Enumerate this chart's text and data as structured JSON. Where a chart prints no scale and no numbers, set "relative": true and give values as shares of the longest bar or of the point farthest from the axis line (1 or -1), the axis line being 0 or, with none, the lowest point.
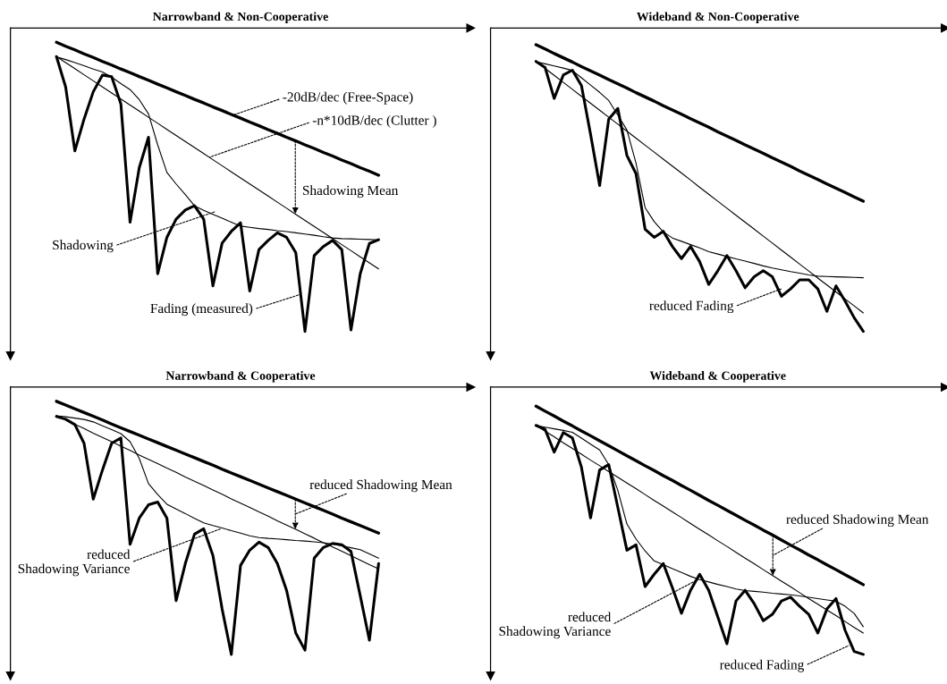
{
  "chart_data": [
    {
      "type": "line",
      "title": "Narrowband & Non-Cooperative",
      "relative": true,
      "tick_labels": false,
      "line_style": "solid",
      "categories": [
        null,
        null,
        null,
        null,
        null,
        null,
        null,
        null,
        null,
        null,
        null,
        null,
        null,
        null,
        null,
        null,
        null,
        null,
        null,
        null,
        null,
        null,
        null,
        null,
        null,
        null,
        null,
        null,
        null,
        null,
        null,
        null,
        null,
        null,
        null,
        null
      ],
      "series": [
        {
          "color": "#000000",
          "values": [
            -0.047,
            -0.06,
            -0.072,
            -0.085,
            -0.097,
            -0.11,
            -0.122,
            -0.135,
            -0.147,
            -0.16,
            -0.172,
            -0.185,
            -0.197,
            -0.21,
            -0.222,
            -0.235,
            -0.247,
            -0.26,
            -0.272,
            -0.285,
            -0.297,
            -0.31,
            -0.322,
            -0.335,
            -0.347,
            -0.36,
            -0.372,
            -0.385,
            -0.397,
            -0.41,
            -0.422,
            -0.435,
            -0.447,
            -0.46,
            -0.472,
            -0.485
          ]
        },
        {
          "color": "#000000",
          "values": [
            -0.094,
            -0.114,
            -0.134,
            -0.154,
            -0.174,
            -0.194,
            -0.214,
            -0.234,
            -0.254,
            -0.274,
            -0.294,
            -0.314,
            -0.334,
            -0.354,
            -0.374,
            -0.394,
            -0.414,
            -0.434,
            -0.454,
            -0.474,
            -0.494,
            -0.514,
            -0.534,
            -0.554,
            -0.574,
            -0.594,
            -0.614,
            -0.634,
            -0.654,
            -0.674,
            -0.694,
            -0.714,
            -0.734,
            -0.754,
            -0.774,
            -0.794
          ]
        },
        {
          "color": "#000000",
          "values": [
            -0.095,
            -0.104,
            -0.114,
            -0.124,
            -0.135,
            -0.145,
            -0.162,
            -0.183,
            -0.203,
            -0.236,
            -0.283,
            -0.385,
            -0.476,
            -0.514,
            -0.549,
            -0.586,
            -0.601,
            -0.614,
            -0.627,
            -0.64,
            -0.653,
            -0.657,
            -0.661,
            -0.664,
            -0.668,
            -0.671,
            -0.675,
            -0.679,
            -0.683,
            -0.688,
            -0.692,
            -0.694,
            -0.695,
            -0.696,
            -0.697,
            -0.698
          ]
        },
        {
          "color": "#000000",
          "values": [
            -0.094,
            -0.194,
            -0.405,
            -0.3,
            -0.21,
            -0.155,
            -0.16,
            -0.25,
            -0.64,
            -0.46,
            -0.36,
            -0.81,
            -0.69,
            -0.63,
            -0.6,
            -0.586,
            -0.63,
            -0.85,
            -0.709,
            -0.67,
            -0.642,
            -0.867,
            -0.73,
            -0.7,
            -0.675,
            -0.69,
            -0.74,
            -1,
            -0.75,
            -0.72,
            -0.7,
            -0.73,
            -0.995,
            -0.81,
            -0.71,
            -0.698
          ]
        }
      ],
      "annotations": [
        "-20dB/dec (Free-Space)",
        "-n*10dB/dec (Clutter )",
        "Shadowing Mean",
        "Shadowing",
        "Fading (measured)"
      ]
    },
    {
      "type": "line",
      "title": "Wideband & Non-Cooperative",
      "relative": true,
      "tick_labels": false,
      "line_style": "solid",
      "categories": [
        null,
        null,
        null,
        null,
        null,
        null,
        null,
        null,
        null,
        null,
        null,
        null,
        null,
        null,
        null,
        null,
        null,
        null,
        null,
        null,
        null,
        null,
        null,
        null,
        null,
        null,
        null,
        null,
        null,
        null,
        null,
        null,
        null,
        null,
        null,
        null,
        null
      ],
      "series": [
        {
          "color": "#000000",
          "values": [
            -0.055,
            -0.069,
            -0.084,
            -0.098,
            -0.112,
            -0.127,
            -0.141,
            -0.155,
            -0.17,
            -0.184,
            -0.198,
            -0.213,
            -0.227,
            -0.241,
            -0.256,
            -0.27,
            -0.284,
            -0.299,
            -0.313,
            -0.327,
            -0.342,
            -0.356,
            -0.37,
            -0.385,
            -0.399,
            -0.413,
            -0.428,
            -0.442,
            -0.456,
            -0.471,
            -0.485,
            -0.499,
            -0.514,
            -0.528,
            -0.542,
            -0.557,
            -0.571
          ]
        },
        {
          "color": "#000000",
          "values": [
            -0.11,
            -0.133,
            -0.156,
            -0.179,
            -0.202,
            -0.225,
            -0.248,
            -0.271,
            -0.294,
            -0.317,
            -0.34,
            -0.363,
            -0.386,
            -0.409,
            -0.432,
            -0.455,
            -0.478,
            -0.501,
            -0.525,
            -0.548,
            -0.571,
            -0.594,
            -0.617,
            -0.64,
            -0.663,
            -0.686,
            -0.709,
            -0.732,
            -0.755,
            -0.778,
            -0.801,
            -0.824,
            -0.847,
            -0.87,
            -0.893,
            -0.916,
            -0.939
          ]
        },
        {
          "color": "#000000",
          "values": [
            -0.111,
            -0.118,
            -0.125,
            -0.132,
            -0.14,
            -0.164,
            -0.188,
            -0.212,
            -0.239,
            -0.287,
            -0.336,
            -0.445,
            -0.592,
            -0.638,
            -0.672,
            -0.692,
            -0.703,
            -0.714,
            -0.725,
            -0.737,
            -0.745,
            -0.753,
            -0.761,
            -0.768,
            -0.776,
            -0.784,
            -0.791,
            -0.797,
            -0.803,
            -0.808,
            -0.814,
            -0.818,
            -0.819,
            -0.82,
            -0.821,
            -0.822,
            -0.823
          ]
        },
        {
          "color": "#000000",
          "values": [
            -0.11,
            -0.13,
            -0.232,
            -0.155,
            -0.139,
            -0.19,
            -0.35,
            -0.519,
            -0.3,
            -0.265,
            -0.42,
            -0.48,
            -0.663,
            -0.69,
            -0.67,
            -0.72,
            -0.76,
            -0.72,
            -0.77,
            -0.845,
            -0.8,
            -0.75,
            -0.8,
            -0.856,
            -0.82,
            -0.8,
            -0.82,
            -0.884,
            -0.86,
            -0.83,
            -0.83,
            -0.86,
            -0.934,
            -0.85,
            -0.9,
            -0.955,
            -1
          ]
        }
      ],
      "annotations": [
        "reduced Fading"
      ]
    },
    {
      "type": "line",
      "title": "Narrowband & Cooperative",
      "relative": true,
      "tick_labels": false,
      "line_style": "solid",
      "categories": [
        null,
        null,
        null,
        null,
        null,
        null,
        null,
        null,
        null,
        null,
        null,
        null,
        null,
        null,
        null,
        null,
        null,
        null,
        null,
        null,
        null,
        null,
        null,
        null,
        null,
        null,
        null,
        null,
        null,
        null,
        null,
        null,
        null,
        null,
        null,
        null
      ],
      "series": [
        {
          "color": "#000000",
          "values": [
            -0.053,
            -0.067,
            -0.081,
            -0.095,
            -0.109,
            -0.123,
            -0.138,
            -0.152,
            -0.166,
            -0.18,
            -0.194,
            -0.208,
            -0.222,
            -0.236,
            -0.25,
            -0.264,
            -0.278,
            -0.292,
            -0.307,
            -0.321,
            -0.335,
            -0.349,
            -0.363,
            -0.377,
            -0.391,
            -0.405,
            -0.419,
            -0.433,
            -0.447,
            -0.461,
            -0.475,
            -0.49,
            -0.504,
            -0.518,
            -0.532,
            -0.546
          ]
        },
        {
          "color": "#000000",
          "values": [
            -0.106,
            -0.122,
            -0.139,
            -0.155,
            -0.172,
            -0.188,
            -0.204,
            -0.221,
            -0.237,
            -0.254,
            -0.27,
            -0.286,
            -0.303,
            -0.319,
            -0.336,
            -0.352,
            -0.368,
            -0.385,
            -0.401,
            -0.418,
            -0.434,
            -0.45,
            -0.467,
            -0.483,
            -0.5,
            -0.516,
            -0.532,
            -0.549,
            -0.565,
            -0.582,
            -0.598,
            -0.614,
            -0.631,
            -0.647,
            -0.664,
            -0.68
          ]
        },
        {
          "color": "#000000",
          "values": [
            -0.107,
            -0.111,
            -0.116,
            -0.121,
            -0.13,
            -0.145,
            -0.159,
            -0.174,
            -0.204,
            -0.267,
            -0.361,
            -0.402,
            -0.438,
            -0.456,
            -0.473,
            -0.491,
            -0.508,
            -0.518,
            -0.527,
            -0.537,
            -0.546,
            -0.556,
            -0.563,
            -0.566,
            -0.568,
            -0.571,
            -0.574,
            -0.576,
            -0.579,
            -0.582,
            -0.587,
            -0.594,
            -0.601,
            -0.608,
            -0.624,
            -0.64
          ]
        },
        {
          "color": "#000000",
          "values": [
            -0.11,
            -0.12,
            -0.14,
            -0.21,
            -0.419,
            -0.31,
            -0.21,
            -0.19,
            -0.588,
            -0.49,
            -0.44,
            -0.43,
            -0.49,
            -0.799,
            -0.66,
            -0.55,
            -0.53,
            -0.63,
            -0.83,
            -1,
            -0.667,
            -0.61,
            -0.58,
            -0.6,
            -0.66,
            -0.76,
            -0.92,
            -0.984,
            -0.64,
            -0.6,
            -0.585,
            -0.59,
            -0.615,
            -0.78,
            -0.947,
            -0.66
          ]
        }
      ],
      "annotations": [
        "reduced Shadowing Mean",
        "reduced\nShadowing Variance"
      ]
    },
    {
      "type": "line",
      "title": "Wideband & Cooperative",
      "relative": true,
      "tick_labels": false,
      "line_style": "solid",
      "categories": [
        null,
        null,
        null,
        null,
        null,
        null,
        null,
        null,
        null,
        null,
        null,
        null,
        null,
        null,
        null,
        null,
        null,
        null,
        null,
        null,
        null,
        null,
        null,
        null,
        null,
        null,
        null,
        null,
        null,
        null,
        null,
        null,
        null,
        null,
        null,
        null,
        null
      ],
      "series": [
        {
          "color": "#000000",
          "values": [
            -0.071,
            -0.09,
            -0.108,
            -0.127,
            -0.145,
            -0.164,
            -0.182,
            -0.201,
            -0.219,
            -0.238,
            -0.257,
            -0.275,
            -0.294,
            -0.312,
            -0.331,
            -0.349,
            -0.368,
            -0.386,
            -0.405,
            -0.424,
            -0.442,
            -0.461,
            -0.479,
            -0.498,
            -0.516,
            -0.535,
            -0.553,
            -0.572,
            -0.591,
            -0.609,
            -0.628,
            -0.646,
            -0.665,
            -0.683,
            -0.702,
            -0.72,
            -0.739
          ]
        },
        {
          "color": "#000000",
          "values": [
            -0.143,
            -0.165,
            -0.186,
            -0.208,
            -0.229,
            -0.251,
            -0.273,
            -0.294,
            -0.316,
            -0.337,
            -0.359,
            -0.38,
            -0.402,
            -0.424,
            -0.445,
            -0.467,
            -0.488,
            -0.51,
            -0.532,
            -0.553,
            -0.575,
            -0.596,
            -0.618,
            -0.64,
            -0.661,
            -0.683,
            -0.704,
            -0.726,
            -0.747,
            -0.769,
            -0.791,
            -0.812,
            -0.834,
            -0.855,
            -0.877,
            -0.899,
            -0.92
          ]
        },
        {
          "color": "#000000",
          "values": [
            -0.144,
            -0.15,
            -0.156,
            -0.162,
            -0.169,
            -0.191,
            -0.213,
            -0.235,
            -0.29,
            -0.386,
            -0.512,
            -0.568,
            -0.613,
            -0.65,
            -0.664,
            -0.679,
            -0.693,
            -0.708,
            -0.72,
            -0.729,
            -0.738,
            -0.746,
            -0.755,
            -0.761,
            -0.764,
            -0.767,
            -0.771,
            -0.774,
            -0.777,
            -0.781,
            -0.786,
            -0.791,
            -0.796,
            -0.801,
            -0.82,
            -0.847,
            -0.896
          ]
        },
        {
          "color": "#000000",
          "values": [
            -0.143,
            -0.158,
            -0.243,
            -0.17,
            -0.19,
            -0.3,
            -0.489,
            -0.31,
            -0.29,
            -0.45,
            -0.61,
            -0.59,
            -0.746,
            -0.7,
            -0.66,
            -0.75,
            -0.846,
            -0.76,
            -0.7,
            -0.76,
            -0.86,
            -0.96,
            -0.8,
            -0.76,
            -0.81,
            -0.874,
            -0.85,
            -0.8,
            -0.786,
            -0.82,
            -0.85,
            -0.92,
            -0.83,
            -0.791,
            -0.91,
            -0.989,
            -1
          ]
        }
      ],
      "annotations": [
        "reduced Shadowing Mean",
        "reduced\nShadowing Variance",
        "reduced Fading"
      ]
    }
  ]
}
